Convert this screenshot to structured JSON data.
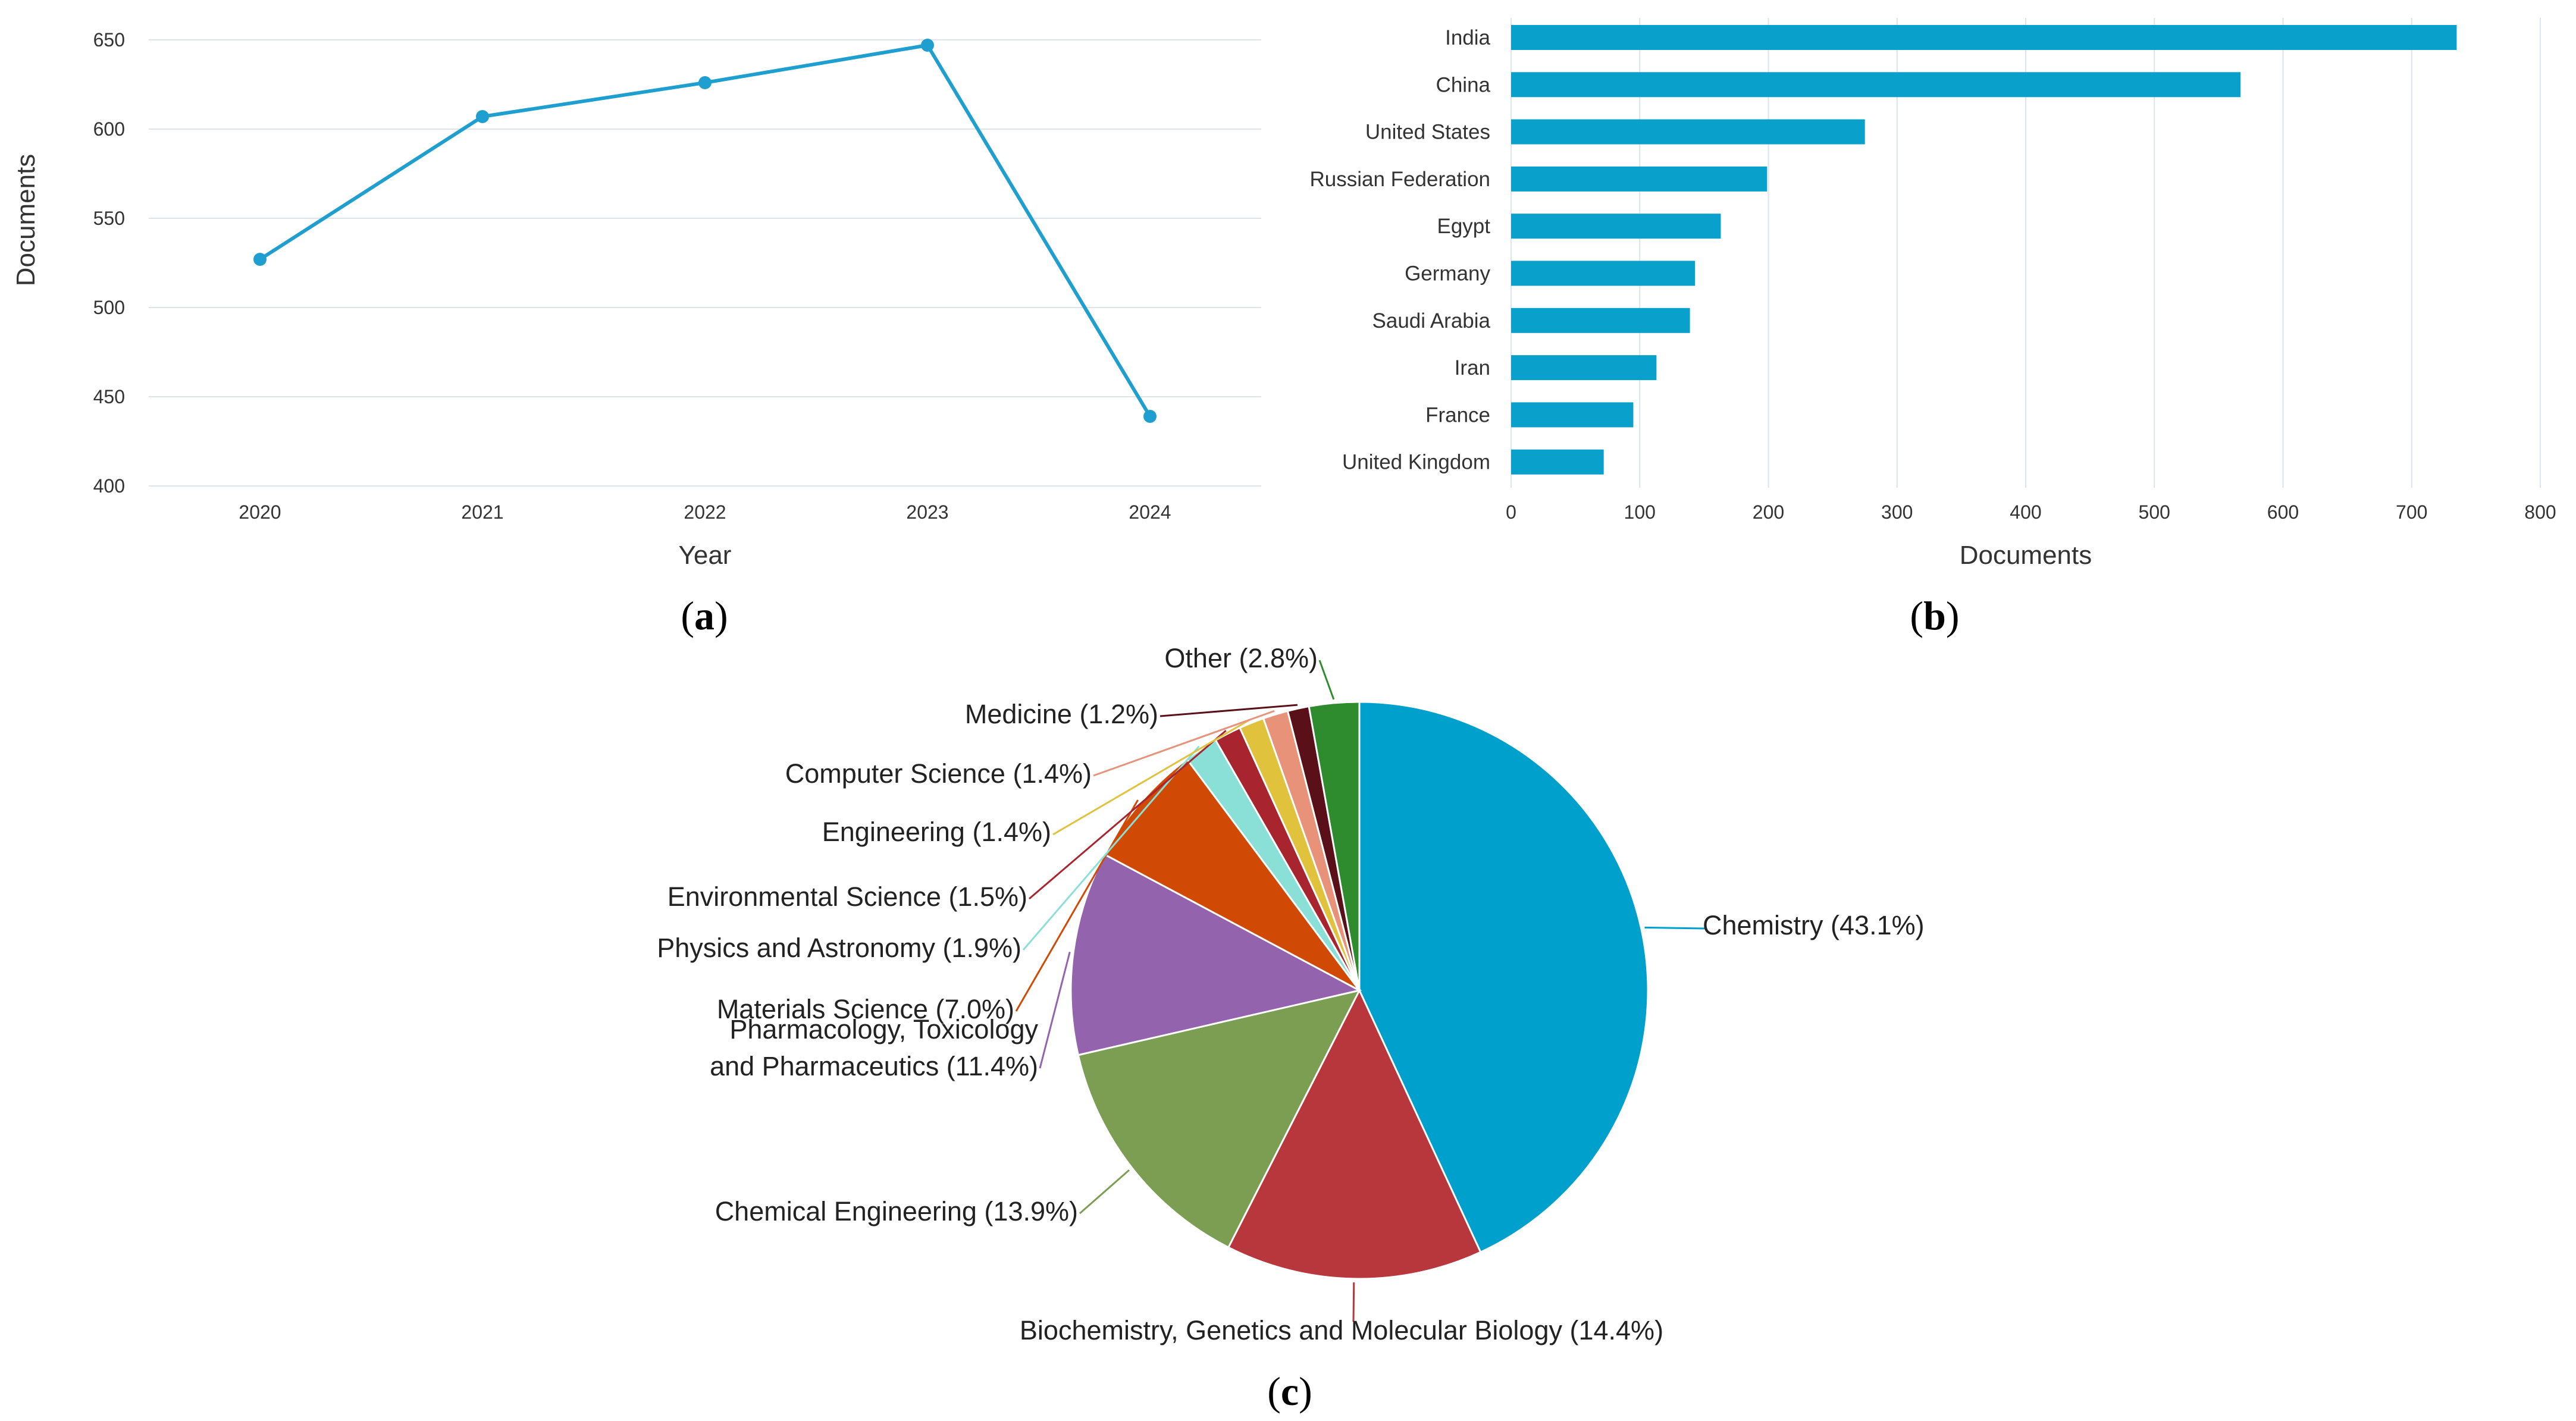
{
  "chart_data": [
    {
      "type": "line",
      "panel_label": "(a)",
      "panel_letter": "a",
      "xlabel": "Year",
      "ylabel": "Documents",
      "x": [
        "2020",
        "2021",
        "2022",
        "2023",
        "2024"
      ],
      "values": [
        527,
        607,
        626,
        647,
        439
      ],
      "ylim": [
        400,
        650
      ],
      "yticks": [
        "400",
        "450",
        "500",
        "550",
        "600",
        "650"
      ],
      "color": "#1f9fd0",
      "grid": true
    },
    {
      "type": "bar",
      "orientation": "horizontal",
      "panel_label": "(b)",
      "panel_letter": "b",
      "xlabel": "Documents",
      "categories": [
        "India",
        "China",
        "United States",
        "Russian Federation",
        "Egypt",
        "Germany",
        "Saudi Arabia",
        "Iran",
        "France",
        "United Kingdom"
      ],
      "values": [
        735,
        567,
        275,
        199,
        163,
        143,
        139,
        113,
        95,
        72
      ],
      "xlim": [
        0,
        800
      ],
      "xticks": [
        "0",
        "100",
        "200",
        "300",
        "400",
        "500",
        "600",
        "700",
        "800"
      ],
      "color": "#0aa0cc",
      "grid": true
    },
    {
      "type": "pie",
      "panel_label": "(c)",
      "panel_letter": "c",
      "slices": [
        {
          "label": "Chemistry (43.1%)",
          "value": 43.1,
          "color": "#00a0cd"
        },
        {
          "label": "Biochemistry, Genetics and Molecular Biology (14.4%)",
          "value": 14.4,
          "color": "#b8373c"
        },
        {
          "label": "Chemical Engineering (13.9%)",
          "value": 13.9,
          "color": "#7c9e53"
        },
        {
          "label": [
            "Pharmacology, Toxicology",
            "and Pharmaceutics (11.4%)"
          ],
          "value": 11.4,
          "color": "#9363ad"
        },
        {
          "label": "Materials Science (7.0%)",
          "value": 7.0,
          "color": "#d04a05"
        },
        {
          "label": "Physics and Astronomy (1.9%)",
          "value": 1.9,
          "color": "#8ae0d6"
        },
        {
          "label": "Environmental Science (1.5%)",
          "value": 1.5,
          "color": "#a8252f"
        },
        {
          "label": "Engineering (1.4%)",
          "value": 1.4,
          "color": "#e0c23c"
        },
        {
          "label": "Computer Science (1.4%)",
          "value": 1.4,
          "color": "#e8927a"
        },
        {
          "label": "Medicine (1.2%)",
          "value": 1.2,
          "color": "#5a1018"
        },
        {
          "label": "Other (2.8%)",
          "value": 2.8,
          "color": "#2e8b2e"
        }
      ]
    }
  ]
}
